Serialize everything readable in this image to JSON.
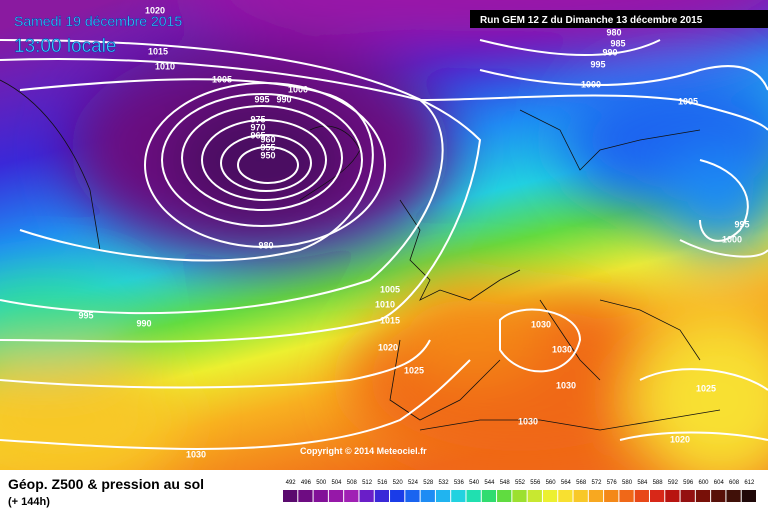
{
  "header": {
    "date": "Samedi 19 décembre 2015",
    "local_time": "13:00 locale",
    "run": "Run GEM 12 Z du Dimanche 13 décembre 2015"
  },
  "copyright": "Copyright © 2014 Meteociel.fr",
  "footer": {
    "title": "Géop. Z500 & pression au sol",
    "lead": "(+ 144h)"
  },
  "isobar_labels": [
    "1020",
    "1015",
    "1010",
    "1005",
    "1000",
    "995",
    "990",
    "975",
    "970",
    "965",
    "960",
    "955",
    "950",
    "980",
    "995",
    "990",
    "1005",
    "1010",
    "1015",
    "1020",
    "1025",
    "1030",
    "1030",
    "1030",
    "1030",
    "1030",
    "1025",
    "1020",
    "980",
    "985",
    "990",
    "995",
    "1000",
    "1005",
    "995",
    "1000"
  ],
  "scale": {
    "values": [
      492,
      496,
      500,
      504,
      508,
      512,
      516,
      520,
      524,
      528,
      532,
      536,
      540,
      544,
      548,
      552,
      556,
      560,
      564,
      568,
      572,
      576,
      580,
      584,
      588,
      592,
      596,
      600,
      604,
      608,
      612
    ],
    "colors": [
      "#5a0a6e",
      "#6e0c82",
      "#821098",
      "#9618a8",
      "#a020b4",
      "#6a1ec8",
      "#3a28d8",
      "#1a3ce8",
      "#1a64f0",
      "#1e8cf4",
      "#20b4f0",
      "#22d2e0",
      "#20e0b0",
      "#30dc70",
      "#60dc40",
      "#9ce030",
      "#c8e830",
      "#ecf030",
      "#f8e030",
      "#f8c828",
      "#f8a820",
      "#f48818",
      "#f06818",
      "#e84818",
      "#d82818",
      "#b81410",
      "#941010",
      "#781008",
      "#581008",
      "#401008",
      "#200808"
    ]
  }
}
